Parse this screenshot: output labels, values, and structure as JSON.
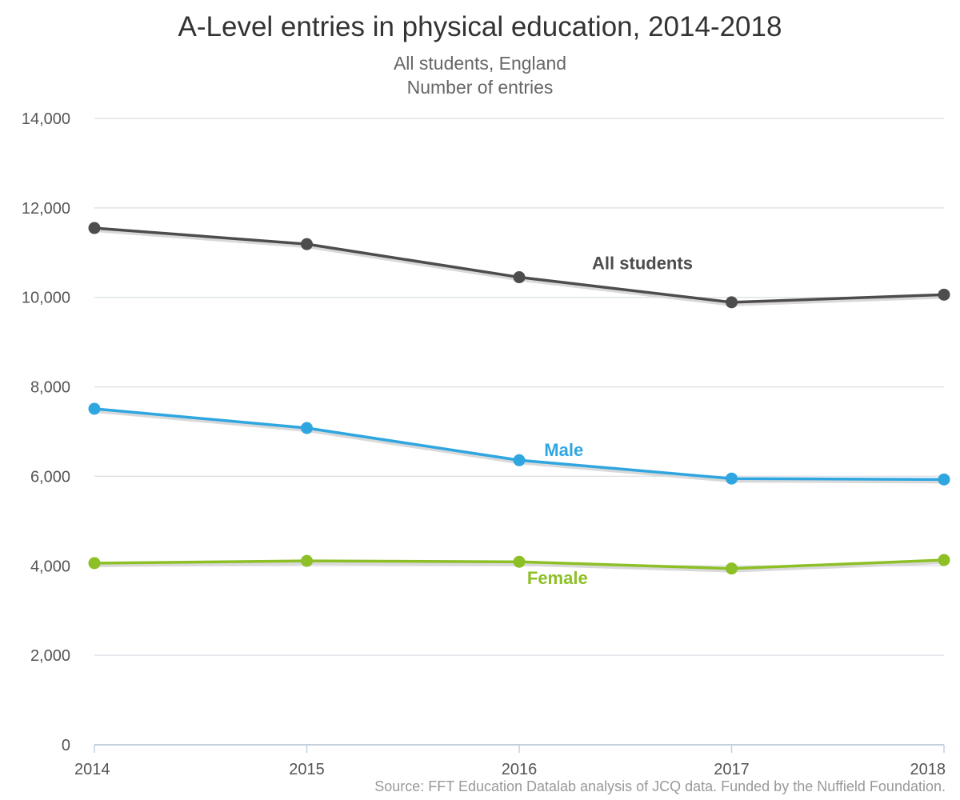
{
  "chart_data": {
    "type": "line",
    "title": "A-Level entries in physical education, 2014-2018",
    "subtitle": [
      "All students, England",
      "Number of entries"
    ],
    "x": [
      "2014",
      "2015",
      "2016",
      "2017",
      "2018"
    ],
    "y_ticks": [
      "0",
      "2,000",
      "4,000",
      "6,000",
      "8,000",
      "10,000",
      "12,000",
      "14,000"
    ],
    "ylim": [
      0,
      14000
    ],
    "grid": "horizontal",
    "legend": "inline labels",
    "series": [
      {
        "name": "All students",
        "color": "#4d4d4d",
        "values": [
          11550,
          11190,
          10450,
          9890,
          10060
        ]
      },
      {
        "name": "Male",
        "color": "#2fa6e0",
        "values": [
          7510,
          7080,
          6360,
          5950,
          5930
        ]
      },
      {
        "name": "Female",
        "color": "#8dbf26",
        "values": [
          4060,
          4110,
          4090,
          3940,
          4130
        ]
      }
    ],
    "source": "Source: FFT Education Datalab analysis of JCQ data. Funded by the Nuffield Foundation."
  }
}
